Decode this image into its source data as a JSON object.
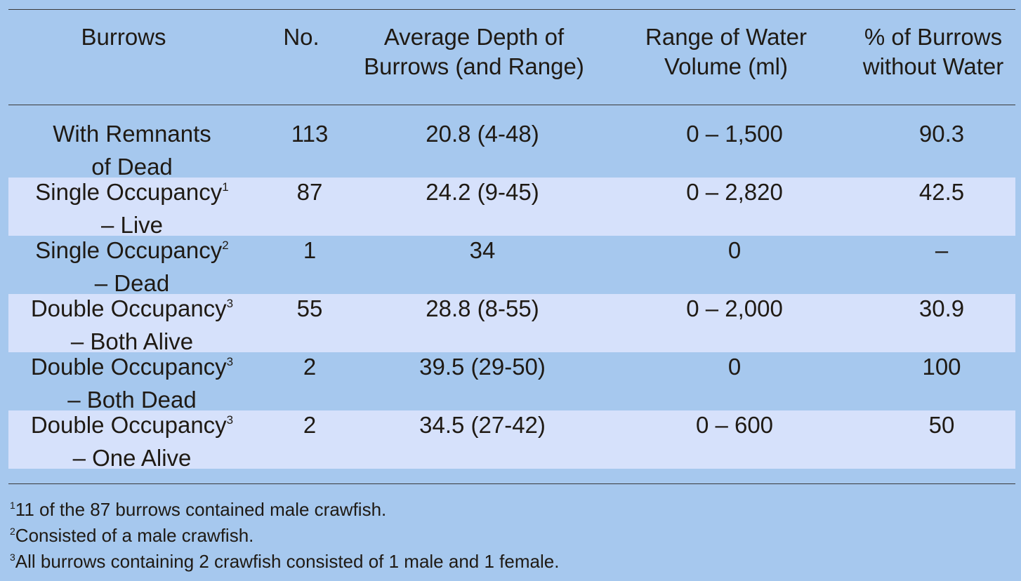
{
  "headers": [
    [
      "Burrows",
      ""
    ],
    [
      "No.",
      ""
    ],
    [
      "Average Depth of",
      "Burrows (and Range)"
    ],
    [
      "Range of Water",
      "Volume (ml)"
    ],
    [
      "% of Burrows",
      "without Water"
    ]
  ],
  "rows": [
    {
      "line1": "With Remnants",
      "sup": "",
      "line2": "of Dead",
      "no": "113",
      "depth": "20.8 (4-48)",
      "water": "0 – 1,500",
      "pct": "90.3",
      "shaded": false
    },
    {
      "line1": "Single Occupancy",
      "sup": "1",
      "line2": "– Live",
      "no": "87",
      "depth": "24.2 (9-45)",
      "water": "0 – 2,820",
      "pct": "42.5",
      "shaded": true
    },
    {
      "line1": "Single Occupancy",
      "sup": "2",
      "line2": "– Dead",
      "no": "1",
      "depth": "34",
      "water": "0",
      "pct": "–",
      "shaded": false
    },
    {
      "line1": "Double Occupancy",
      "sup": "3",
      "line2": "– Both Alive",
      "no": "55",
      "depth": "28.8 (8-55)",
      "water": "0 – 2,000",
      "pct": "30.9",
      "shaded": true
    },
    {
      "line1": "Double Occupancy",
      "sup": "3",
      "line2": "– Both Dead",
      "no": "2",
      "depth": "39.5 (29-50)",
      "water": "0",
      "pct": "100",
      "shaded": false
    },
    {
      "line1": "Double Occupancy",
      "sup": "3",
      "line2": "– One Alive",
      "no": "2",
      "depth": "34.5 (27-42)",
      "water": "0 – 600",
      "pct": "50",
      "shaded": true
    }
  ],
  "footnotes": [
    {
      "mark": "1",
      "text": "11 of the 87 burrows contained male crawfish."
    },
    {
      "mark": "2",
      "text": "Consisted of a male crawfish."
    },
    {
      "mark": "3",
      "text": "All burrows containing 2 crawfish consisted of 1 male and 1 female."
    }
  ]
}
